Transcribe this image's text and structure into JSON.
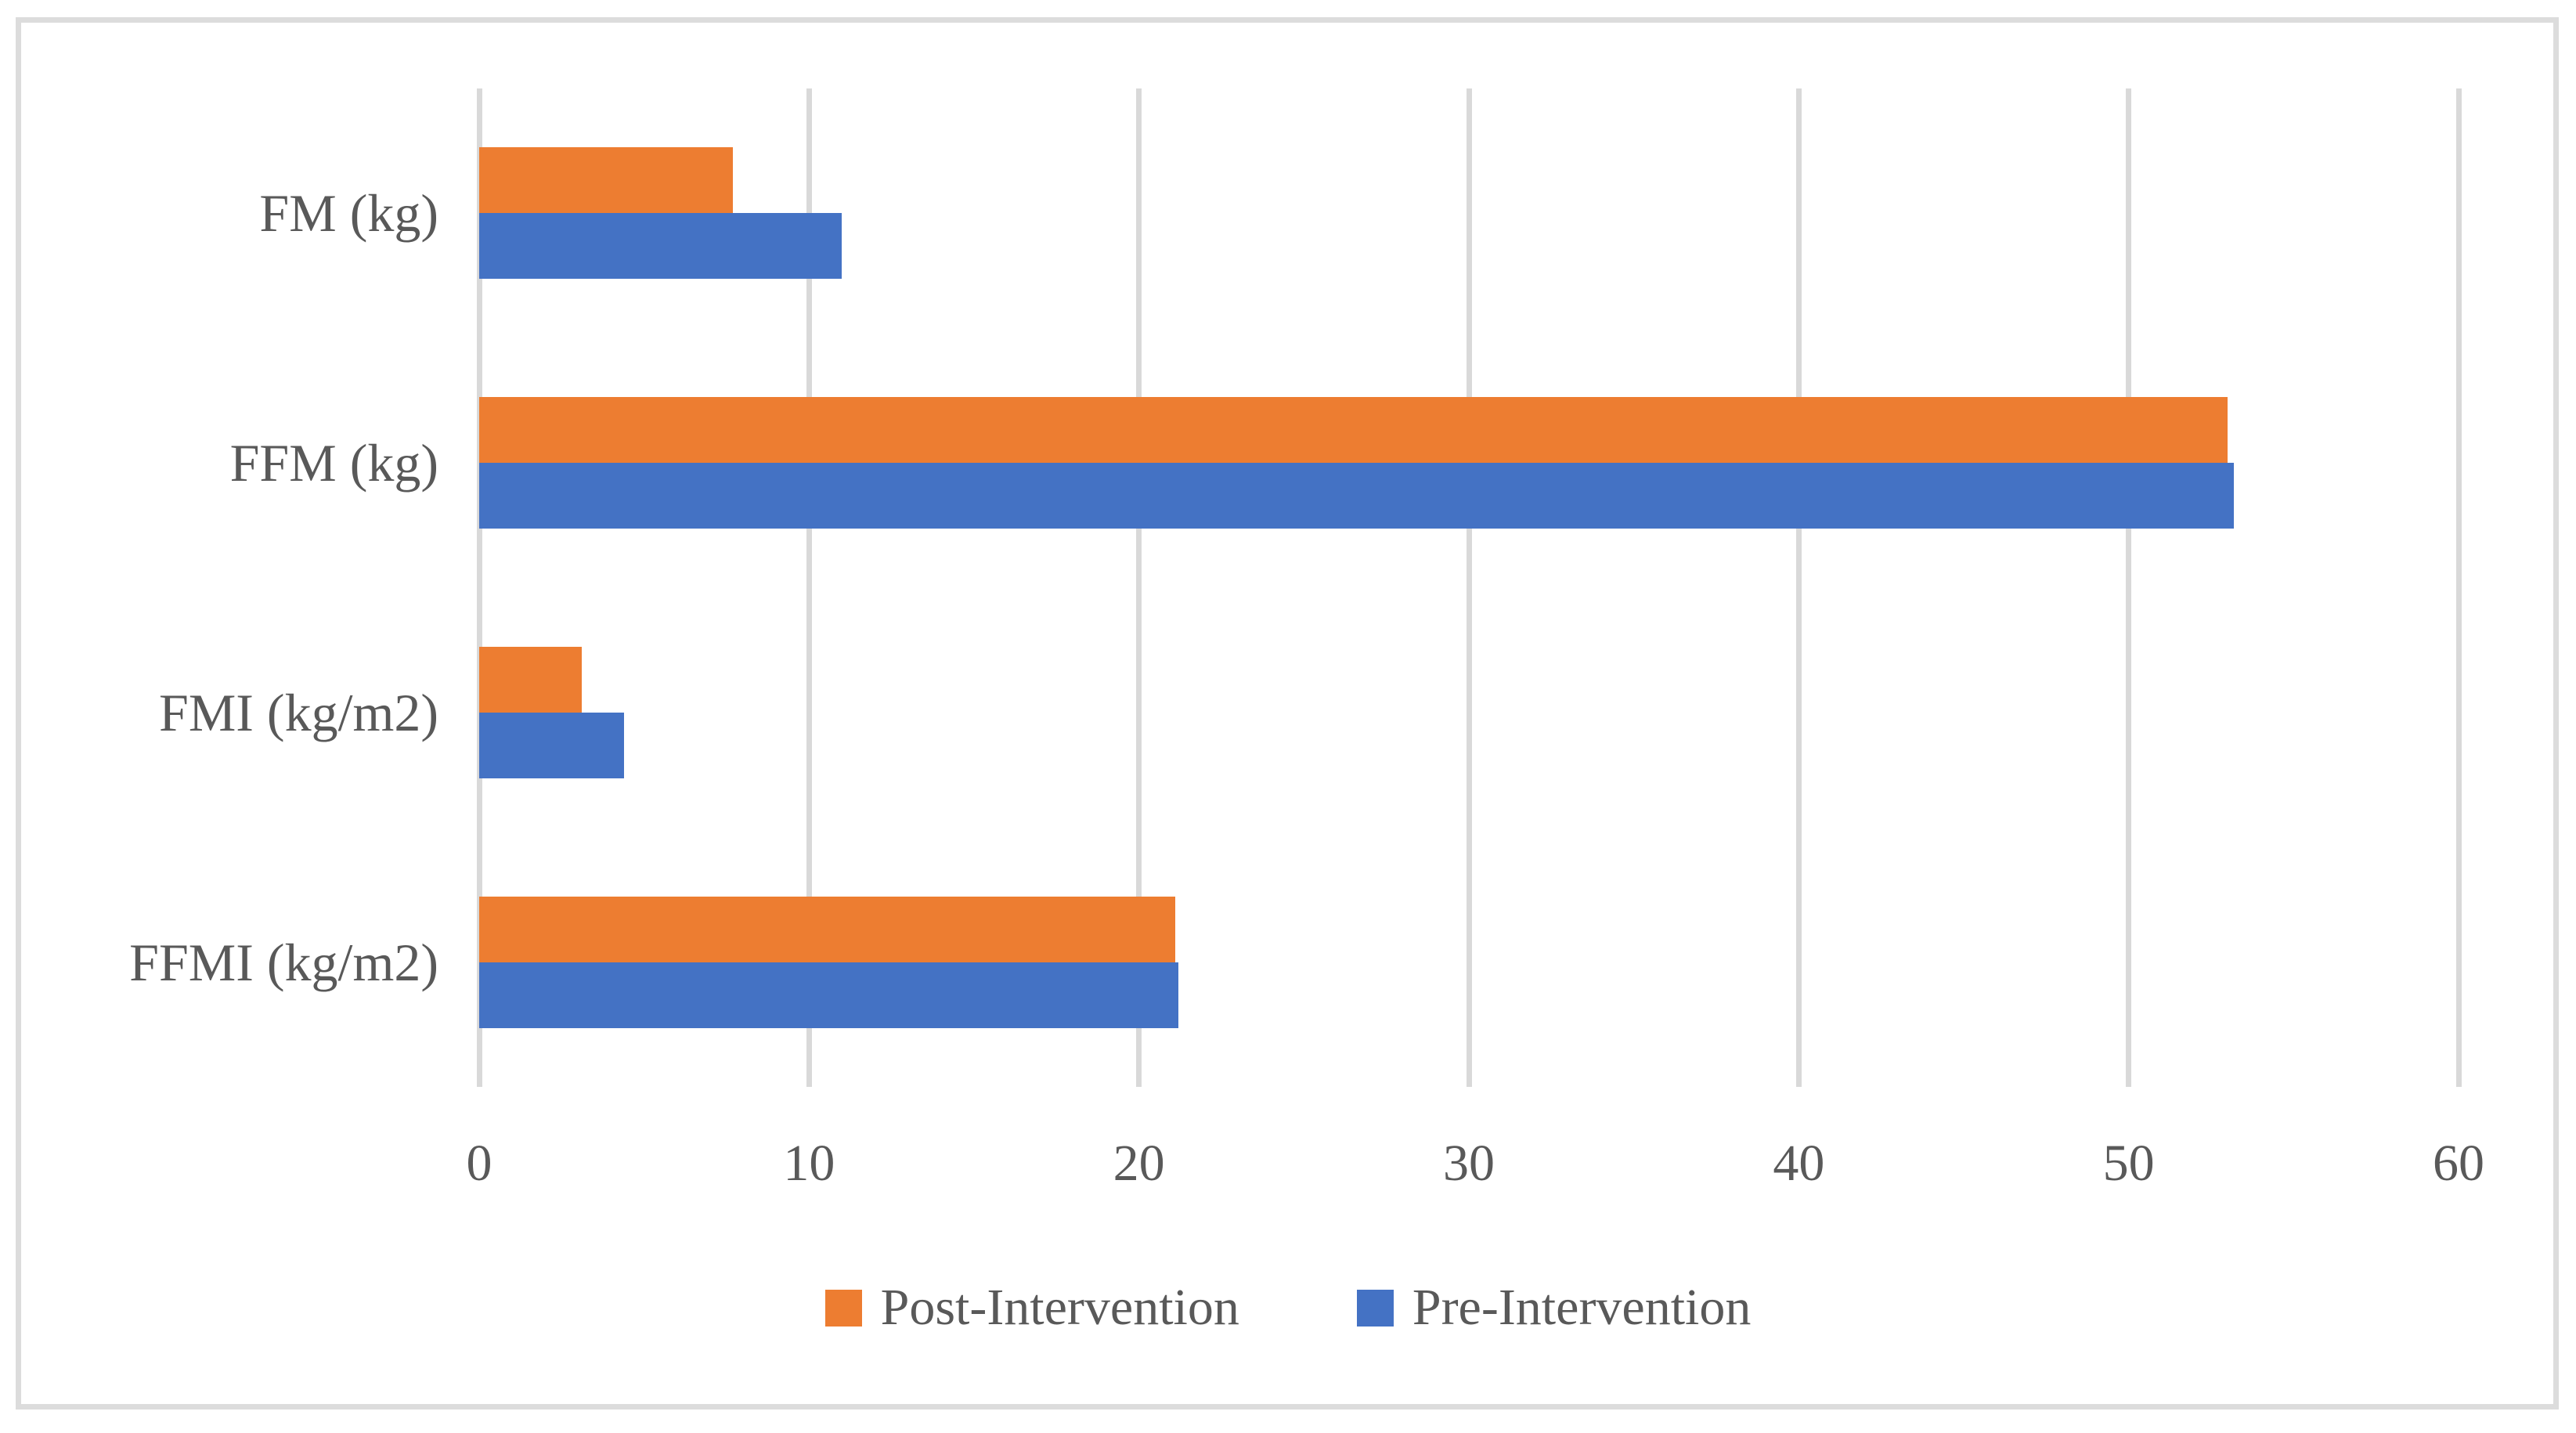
{
  "figure": {
    "background": "#FFFFFF",
    "border_color": "#DCDCDC"
  },
  "chart_data": {
    "type": "bar",
    "orientation": "horizontal",
    "title": "",
    "xlabel": "",
    "ylabel": "",
    "categories": [
      "FM (kg)",
      "FFM (kg)",
      "FMI (kg/m2)",
      "FFMI (kg/m2)"
    ],
    "series": [
      {
        "name": "Post-Intervention",
        "color": "#ED7D31",
        "values": [
          7.7,
          53.0,
          3.1,
          21.1
        ]
      },
      {
        "name": "Pre-Intervention",
        "color": "#4472C4",
        "values": [
          11.0,
          53.2,
          4.4,
          21.2
        ]
      }
    ],
    "xlim": [
      0,
      60
    ],
    "x_ticks": [
      "0",
      "10",
      "20",
      "30",
      "40",
      "50",
      "60"
    ],
    "grid": true,
    "gridline_color": "#D9D9D9",
    "text_color": "#595959",
    "legend_position": "bottom"
  }
}
